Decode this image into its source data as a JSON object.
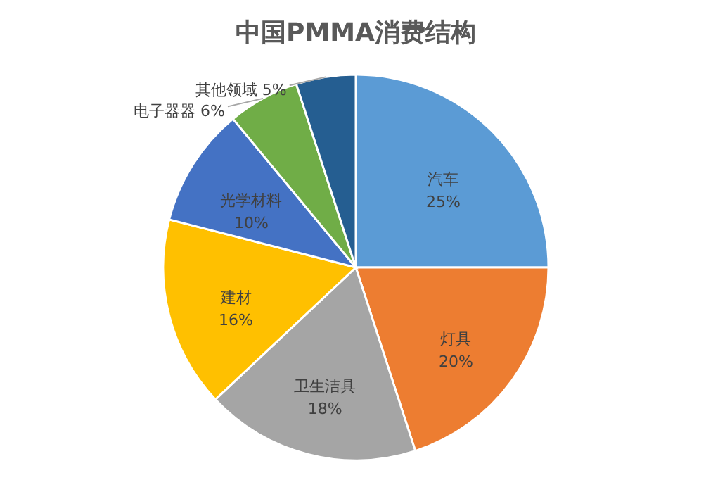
{
  "chart_data": {
    "type": "pie",
    "title": "中国PMMA消费结构",
    "categories": [
      "汽车",
      "灯具",
      "卫生洁具",
      "建材",
      "光学材料",
      "电子器器",
      "其他领域"
    ],
    "values": [
      25,
      20,
      18,
      16,
      10,
      6,
      5
    ],
    "value_labels": [
      "25%",
      "20%",
      "18%",
      "16%",
      "10%",
      "6%",
      "5%"
    ],
    "colors": [
      "#5b9bd5",
      "#ed7d31",
      "#a5a5a5",
      "#ffc000",
      "#4472c4",
      "#70ad47",
      "#255e91"
    ]
  }
}
